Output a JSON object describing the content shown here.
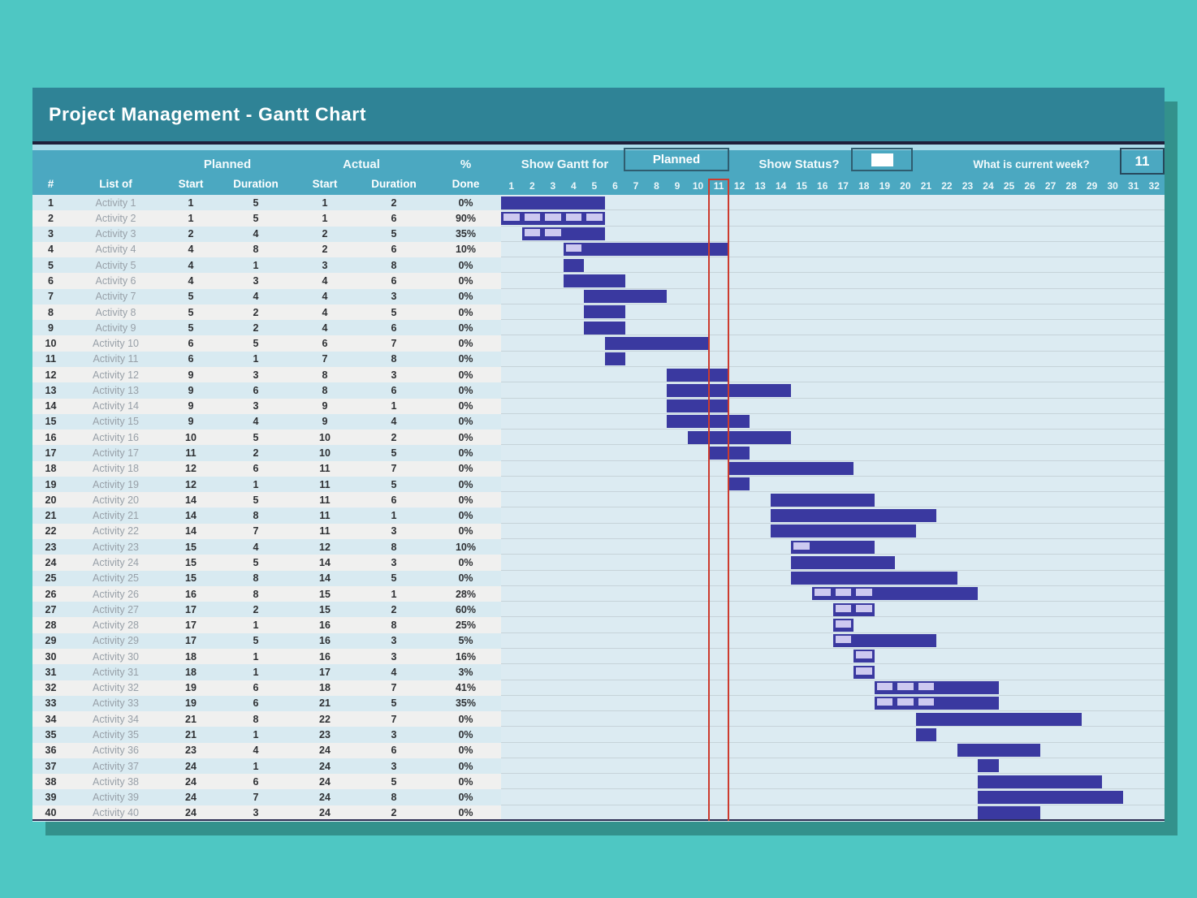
{
  "title": "Project Management - Gantt Chart",
  "controls": {
    "show_gantt_for_label": "Show Gantt for",
    "show_gantt_for_value": "Planned",
    "show_status_label": "Show Status?",
    "current_week_label": "What is current week?",
    "current_week_value": "11"
  },
  "table": {
    "group_headers": [
      "Planned",
      "Actual",
      "%"
    ],
    "columns": [
      "#",
      "List of",
      "Start",
      "Duration",
      "Start",
      "Duration",
      "Done"
    ]
  },
  "colors": {
    "background": "#4ec7c3",
    "title_bar": "#2f8396",
    "header": "#4ba8c1",
    "bar": "#3a39a0",
    "bar_complete_fill": "#cdc9f0",
    "current_week_marker": "#cc3b2e",
    "row_odd": "#d8eaf1",
    "row_even": "#f0f0ef"
  },
  "chart_data": {
    "type": "gantt",
    "view": "Planned",
    "current_week": 11,
    "weeks_visible": 32,
    "activities": [
      {
        "n": 1,
        "name": "Activity 1",
        "planned_start": 1,
        "planned_duration": 5,
        "actual_start": 1,
        "actual_duration": 2,
        "percent_done": 0
      },
      {
        "n": 2,
        "name": "Activity 2",
        "planned_start": 1,
        "planned_duration": 5,
        "actual_start": 1,
        "actual_duration": 6,
        "percent_done": 90
      },
      {
        "n": 3,
        "name": "Activity 3",
        "planned_start": 2,
        "planned_duration": 4,
        "actual_start": 2,
        "actual_duration": 5,
        "percent_done": 35
      },
      {
        "n": 4,
        "name": "Activity 4",
        "planned_start": 4,
        "planned_duration": 8,
        "actual_start": 2,
        "actual_duration": 6,
        "percent_done": 10
      },
      {
        "n": 5,
        "name": "Activity 5",
        "planned_start": 4,
        "planned_duration": 1,
        "actual_start": 3,
        "actual_duration": 8,
        "percent_done": 0
      },
      {
        "n": 6,
        "name": "Activity 6",
        "planned_start": 4,
        "planned_duration": 3,
        "actual_start": 4,
        "actual_duration": 6,
        "percent_done": 0
      },
      {
        "n": 7,
        "name": "Activity 7",
        "planned_start": 5,
        "planned_duration": 4,
        "actual_start": 4,
        "actual_duration": 3,
        "percent_done": 0
      },
      {
        "n": 8,
        "name": "Activity 8",
        "planned_start": 5,
        "planned_duration": 2,
        "actual_start": 4,
        "actual_duration": 5,
        "percent_done": 0
      },
      {
        "n": 9,
        "name": "Activity 9",
        "planned_start": 5,
        "planned_duration": 2,
        "actual_start": 4,
        "actual_duration": 6,
        "percent_done": 0
      },
      {
        "n": 10,
        "name": "Activity 10",
        "planned_start": 6,
        "planned_duration": 5,
        "actual_start": 6,
        "actual_duration": 7,
        "percent_done": 0
      },
      {
        "n": 11,
        "name": "Activity 11",
        "planned_start": 6,
        "planned_duration": 1,
        "actual_start": 7,
        "actual_duration": 8,
        "percent_done": 0
      },
      {
        "n": 12,
        "name": "Activity 12",
        "planned_start": 9,
        "planned_duration": 3,
        "actual_start": 8,
        "actual_duration": 3,
        "percent_done": 0
      },
      {
        "n": 13,
        "name": "Activity 13",
        "planned_start": 9,
        "planned_duration": 6,
        "actual_start": 8,
        "actual_duration": 6,
        "percent_done": 0
      },
      {
        "n": 14,
        "name": "Activity 14",
        "planned_start": 9,
        "planned_duration": 3,
        "actual_start": 9,
        "actual_duration": 1,
        "percent_done": 0
      },
      {
        "n": 15,
        "name": "Activity 15",
        "planned_start": 9,
        "planned_duration": 4,
        "actual_start": 9,
        "actual_duration": 4,
        "percent_done": 0
      },
      {
        "n": 16,
        "name": "Activity 16",
        "planned_start": 10,
        "planned_duration": 5,
        "actual_start": 10,
        "actual_duration": 2,
        "percent_done": 0
      },
      {
        "n": 17,
        "name": "Activity 17",
        "planned_start": 11,
        "planned_duration": 2,
        "actual_start": 10,
        "actual_duration": 5,
        "percent_done": 0
      },
      {
        "n": 18,
        "name": "Activity 18",
        "planned_start": 12,
        "planned_duration": 6,
        "actual_start": 11,
        "actual_duration": 7,
        "percent_done": 0
      },
      {
        "n": 19,
        "name": "Activity 19",
        "planned_start": 12,
        "planned_duration": 1,
        "actual_start": 11,
        "actual_duration": 5,
        "percent_done": 0
      },
      {
        "n": 20,
        "name": "Activity 20",
        "planned_start": 14,
        "planned_duration": 5,
        "actual_start": 11,
        "actual_duration": 6,
        "percent_done": 0
      },
      {
        "n": 21,
        "name": "Activity 21",
        "planned_start": 14,
        "planned_duration": 8,
        "actual_start": 11,
        "actual_duration": 1,
        "percent_done": 0
      },
      {
        "n": 22,
        "name": "Activity 22",
        "planned_start": 14,
        "planned_duration": 7,
        "actual_start": 11,
        "actual_duration": 3,
        "percent_done": 0
      },
      {
        "n": 23,
        "name": "Activity 23",
        "planned_start": 15,
        "planned_duration": 4,
        "actual_start": 12,
        "actual_duration": 8,
        "percent_done": 10
      },
      {
        "n": 24,
        "name": "Activity 24",
        "planned_start": 15,
        "planned_duration": 5,
        "actual_start": 14,
        "actual_duration": 3,
        "percent_done": 0
      },
      {
        "n": 25,
        "name": "Activity 25",
        "planned_start": 15,
        "planned_duration": 8,
        "actual_start": 14,
        "actual_duration": 5,
        "percent_done": 0
      },
      {
        "n": 26,
        "name": "Activity 26",
        "planned_start": 16,
        "planned_duration": 8,
        "actual_start": 15,
        "actual_duration": 1,
        "percent_done": 28
      },
      {
        "n": 27,
        "name": "Activity 27",
        "planned_start": 17,
        "planned_duration": 2,
        "actual_start": 15,
        "actual_duration": 2,
        "percent_done": 60
      },
      {
        "n": 28,
        "name": "Activity 28",
        "planned_start": 17,
        "planned_duration": 1,
        "actual_start": 16,
        "actual_duration": 8,
        "percent_done": 25
      },
      {
        "n": 29,
        "name": "Activity 29",
        "planned_start": 17,
        "planned_duration": 5,
        "actual_start": 16,
        "actual_duration": 3,
        "percent_done": 5
      },
      {
        "n": 30,
        "name": "Activity 30",
        "planned_start": 18,
        "planned_duration": 1,
        "actual_start": 16,
        "actual_duration": 3,
        "percent_done": 16
      },
      {
        "n": 31,
        "name": "Activity 31",
        "planned_start": 18,
        "planned_duration": 1,
        "actual_start": 17,
        "actual_duration": 4,
        "percent_done": 3
      },
      {
        "n": 32,
        "name": "Activity 32",
        "planned_start": 19,
        "planned_duration": 6,
        "actual_start": 18,
        "actual_duration": 7,
        "percent_done": 41
      },
      {
        "n": 33,
        "name": "Activity 33",
        "planned_start": 19,
        "planned_duration": 6,
        "actual_start": 21,
        "actual_duration": 5,
        "percent_done": 35
      },
      {
        "n": 34,
        "name": "Activity 34",
        "planned_start": 21,
        "planned_duration": 8,
        "actual_start": 22,
        "actual_duration": 7,
        "percent_done": 0
      },
      {
        "n": 35,
        "name": "Activity 35",
        "planned_start": 21,
        "planned_duration": 1,
        "actual_start": 23,
        "actual_duration": 3,
        "percent_done": 0
      },
      {
        "n": 36,
        "name": "Activity 36",
        "planned_start": 23,
        "planned_duration": 4,
        "actual_start": 24,
        "actual_duration": 6,
        "percent_done": 0
      },
      {
        "n": 37,
        "name": "Activity 37",
        "planned_start": 24,
        "planned_duration": 1,
        "actual_start": 24,
        "actual_duration": 3,
        "percent_done": 0
      },
      {
        "n": 38,
        "name": "Activity 38",
        "planned_start": 24,
        "planned_duration": 6,
        "actual_start": 24,
        "actual_duration": 5,
        "percent_done": 0
      },
      {
        "n": 39,
        "name": "Activity 39",
        "planned_start": 24,
        "planned_duration": 7,
        "actual_start": 24,
        "actual_duration": 8,
        "percent_done": 0
      },
      {
        "n": 40,
        "name": "Activity 40",
        "planned_start": 24,
        "planned_duration": 3,
        "actual_start": 24,
        "actual_duration": 2,
        "percent_done": 0
      }
    ]
  }
}
